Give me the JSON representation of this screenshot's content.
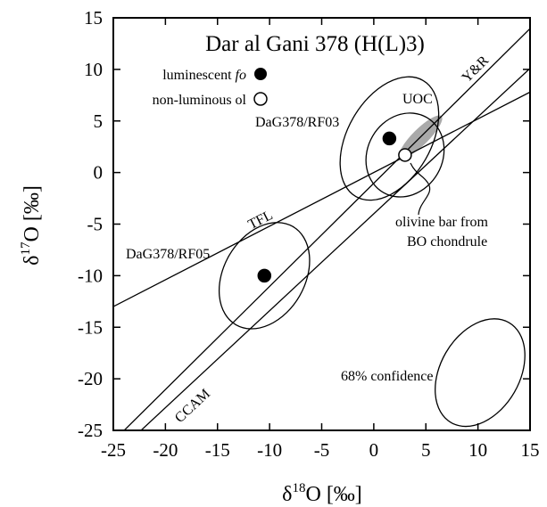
{
  "chart_data": {
    "type": "scatter",
    "title": "Dar al Gani 378 (H(L)3)",
    "xlabel": {
      "delta": "δ",
      "sup": "18",
      "rest": "O [‰]"
    },
    "ylabel": {
      "delta": "δ",
      "sup": "17",
      "rest": "O [‰]"
    },
    "xlim": [
      -25,
      15
    ],
    "ylim": [
      -25,
      15
    ],
    "x_ticks": [
      -25,
      -20,
      -15,
      -10,
      -5,
      0,
      5,
      10,
      15
    ],
    "y_ticks": [
      -25,
      -20,
      -15,
      -10,
      -5,
      0,
      5,
      10,
      15
    ],
    "x_tick_labels": [
      "-25",
      "-20",
      "-15",
      "-10",
      "-5",
      "0",
      "5",
      "10",
      "15"
    ],
    "y_tick_labels": [
      "-25",
      "-20",
      "-15",
      "-10",
      "-5",
      "0",
      "5",
      "10",
      "15"
    ],
    "grid": false,
    "legend": {
      "placement": "top-left",
      "entries": [
        {
          "label_text": "luminescent ",
          "label_italic": "fo",
          "marker": "filled-circle"
        },
        {
          "label_text": "non-luminous ol",
          "label_italic": "",
          "marker": "open-circle"
        }
      ]
    },
    "points": [
      {
        "x": 1.5,
        "y": 3.3,
        "type": "luminescent fo",
        "label": "DaG378/RF03"
      },
      {
        "x": -10.5,
        "y": -10.0,
        "type": "luminescent fo",
        "label": "DaG378/RF05"
      },
      {
        "x": 3.0,
        "y": 1.7,
        "type": "non-luminous ol",
        "label": "olivine bar from BO chondrule"
      }
    ],
    "ellipses": [
      {
        "cx": 1.5,
        "cy": 3.3,
        "rx": 4.0,
        "ry": 6.5,
        "angle_deg": 30,
        "kind": "68% confidence"
      },
      {
        "cx": 3.0,
        "cy": 1.7,
        "rx": 3.6,
        "ry": 4.2,
        "angle_deg": 30,
        "kind": "68% confidence"
      },
      {
        "cx": -10.5,
        "cy": -10.0,
        "rx": 3.9,
        "ry": 5.5,
        "angle_deg": 30,
        "kind": "68% confidence"
      },
      {
        "cx": 10.2,
        "cy": -19.4,
        "rx": 3.8,
        "ry": 5.6,
        "angle_deg": 30,
        "kind": "68% confidence"
      }
    ],
    "reference_lines": [
      {
        "name": "TFL",
        "slope": 0.52,
        "intercept": 0
      },
      {
        "name": "CCAM",
        "slope": 0.94,
        "intercept": -4.0
      },
      {
        "name": "Y&R",
        "slope": 1.0,
        "intercept": -1.04
      }
    ],
    "uoc_region": {
      "label": "UOC",
      "x_range": [
        2.5,
        6.5
      ]
    },
    "annotations": [
      {
        "text": "DaG378/RF03"
      },
      {
        "text": "DaG378/RF05"
      },
      {
        "text": "UOC"
      },
      {
        "text": "TFL"
      },
      {
        "text": "CCAM"
      },
      {
        "text": "Y&R"
      },
      {
        "text": "olivine bar from"
      },
      {
        "text": "BO chondrule"
      },
      {
        "text": "68% confidence"
      }
    ]
  }
}
